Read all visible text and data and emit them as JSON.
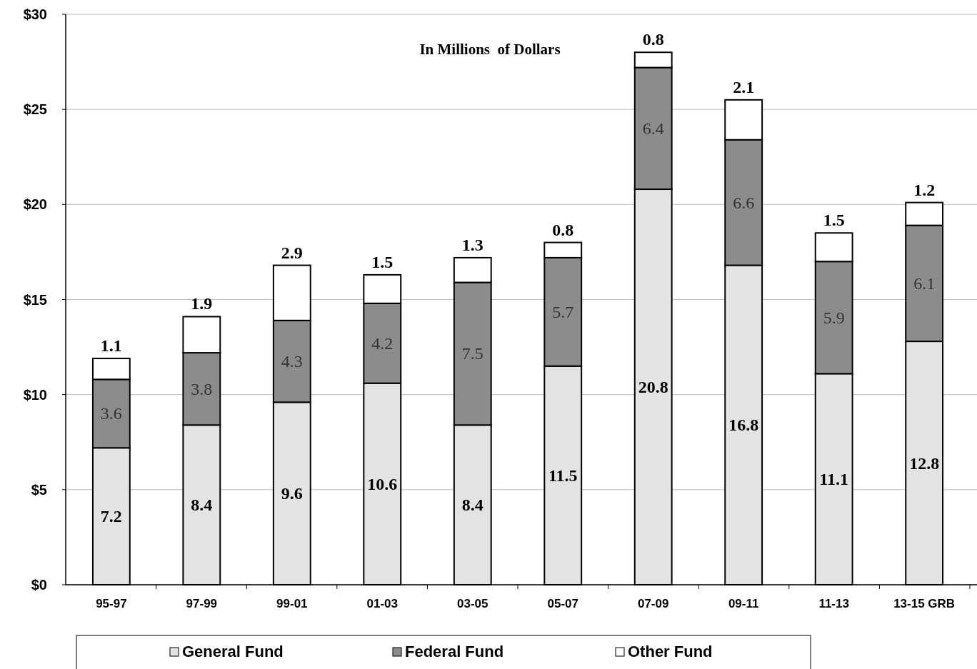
{
  "chart_data": {
    "type": "bar",
    "title": "In Millions  of Dollars",
    "stacked": true,
    "data_labels": true,
    "grid": "y",
    "legend": "bottom",
    "categories": [
      "95-97",
      "97-99",
      "99-01",
      "01-03",
      "03-05",
      "05-07",
      "07-09",
      "09-11",
      "11-13",
      "13-15 GRB"
    ],
    "series": [
      {
        "name": "General Fund",
        "color": "#e3e3e3",
        "values": [
          7.2,
          8.4,
          9.6,
          10.6,
          8.4,
          11.5,
          20.8,
          16.8,
          11.1,
          12.8
        ]
      },
      {
        "name": "Federal Fund",
        "color": "#8c8c8c",
        "values": [
          3.6,
          3.8,
          4.3,
          4.2,
          7.5,
          5.7,
          6.4,
          6.6,
          5.9,
          6.1
        ]
      },
      {
        "name": "Other Fund",
        "color": "#ffffff",
        "values": [
          1.1,
          1.9,
          2.9,
          1.5,
          1.3,
          0.8,
          0.8,
          2.1,
          1.5,
          1.2
        ]
      }
    ],
    "ylim": [
      0,
      30
    ],
    "yticks": [
      {
        "value": 0,
        "label": "$0"
      },
      {
        "value": 5,
        "label": "$5"
      },
      {
        "value": 10,
        "label": "$10"
      },
      {
        "value": 15,
        "label": "$15"
      },
      {
        "value": 20,
        "label": "$20"
      },
      {
        "value": 25,
        "label": "$25"
      },
      {
        "value": 30,
        "label": "$30"
      }
    ]
  }
}
